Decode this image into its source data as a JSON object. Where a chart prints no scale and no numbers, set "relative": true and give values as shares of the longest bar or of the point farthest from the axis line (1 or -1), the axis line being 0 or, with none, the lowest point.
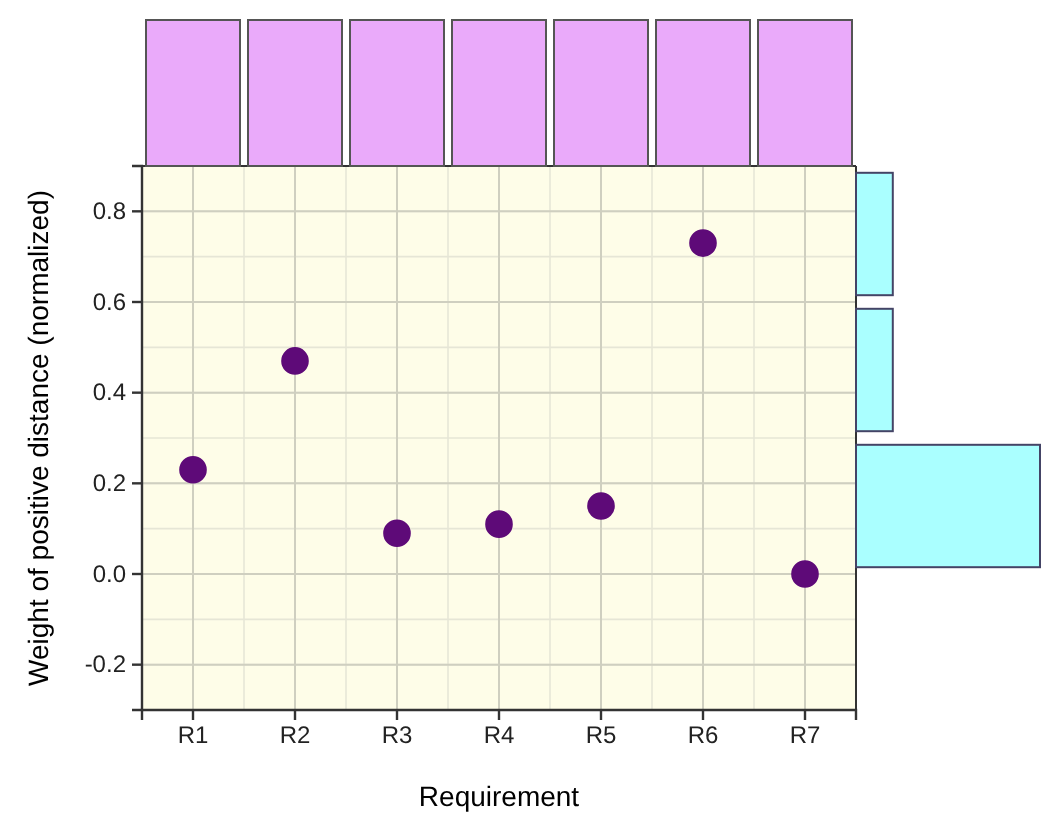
{
  "chart_data": [
    {
      "type": "scatter",
      "xlabel": "Requirement",
      "ylabel": "Weight of positive distance (normalized)",
      "categories": [
        "R1",
        "R2",
        "R3",
        "R4",
        "R5",
        "R6",
        "R7"
      ],
      "values": [
        0.23,
        0.47,
        0.09,
        0.11,
        0.15,
        0.73,
        0.0
      ],
      "color": "#5e0a78",
      "marker": "circle",
      "ylim": [
        -0.3,
        0.9
      ],
      "yticks": [
        -0.2,
        {
          "value": 0.0,
          "label": "0.0"
        },
        0.2,
        0.4,
        0.6,
        0.8
      ],
      "grid": true
    },
    {
      "type": "bar",
      "categories": [
        null,
        null,
        null,
        null,
        null,
        null,
        null
      ],
      "values": [
        1,
        1,
        1,
        1,
        1,
        1,
        1
      ],
      "color": "#eaaafa",
      "relative": true
    },
    {
      "type": "bar",
      "orientation": "horizontal",
      "categories": [
        null,
        null,
        null
      ],
      "values": [
        0.2,
        0.2,
        1
      ],
      "color": "#aaffff",
      "relative": true
    }
  ]
}
